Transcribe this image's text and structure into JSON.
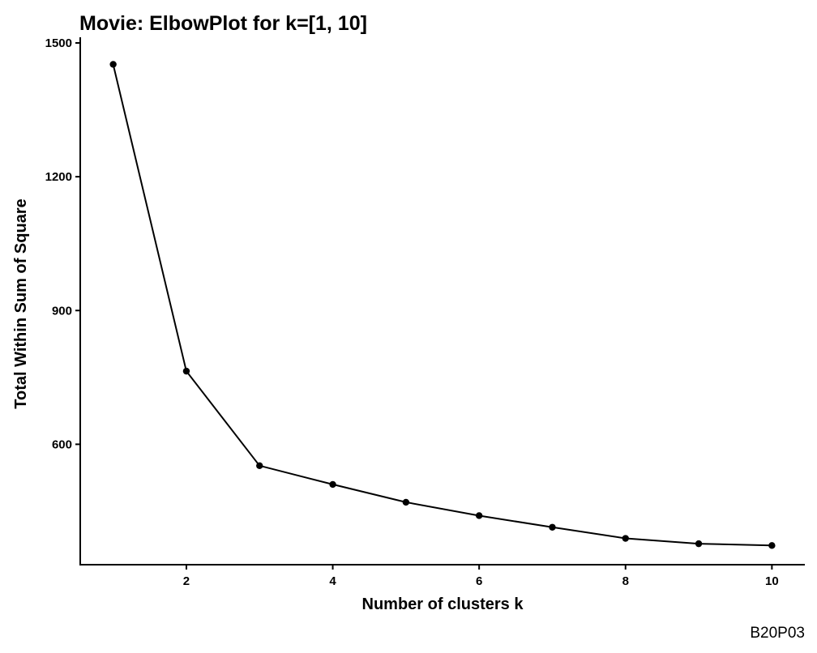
{
  "chart_data": {
    "type": "line",
    "title": "Movie: ElbowPlot for k=[1, 10]",
    "xlabel": "Number of clusters k",
    "ylabel": "Total Within Sum of Square",
    "caption": "B20P03",
    "x": [
      1,
      2,
      3,
      4,
      5,
      6,
      7,
      8,
      9,
      10
    ],
    "values": [
      1452,
      764,
      552,
      510,
      470,
      440,
      414,
      389,
      377,
      373
    ],
    "xticks": [
      2,
      4,
      6,
      8,
      10
    ],
    "yticks": [
      600,
      900,
      1200,
      1500
    ],
    "xlim": [
      0.55,
      10.45
    ],
    "ylim": [
      330,
      1500
    ],
    "grid": false,
    "legend": "none",
    "line_color": "#000000",
    "point_color": "#000000"
  }
}
